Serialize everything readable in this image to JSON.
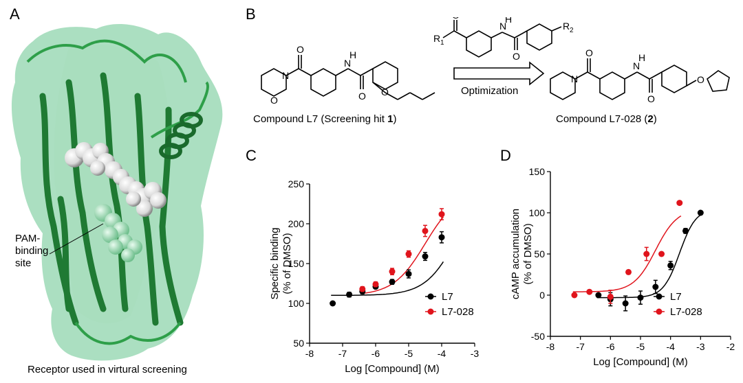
{
  "panels": {
    "a": {
      "letter": "A",
      "pam_label_lines": [
        "PAM-",
        "binding",
        "site"
      ],
      "caption": "Receptor used in virtural screening"
    },
    "b": {
      "letter": "B",
      "compound1_label_pre": "Compound L7 (Screening hit ",
      "compound1_label_bold": "1",
      "compound1_label_post": ")",
      "compound2_label_pre": "Compound L7-028 (",
      "compound2_label_bold": "2",
      "compound2_label_post": ")",
      "arrow_label": "Optimization",
      "atom_O": "O",
      "atom_N": "N",
      "atom_NH": "H",
      "scaffold_R1": "R",
      "scaffold_R1_sub": "1",
      "scaffold_R2": "R",
      "scaffold_R2_sub": "2"
    },
    "c": {
      "letter": "C"
    },
    "d": {
      "letter": "D"
    }
  },
  "colors": {
    "L7": "#000000",
    "L7-028": "#e0141c",
    "receptor": "#1f8a3c",
    "surface": "#8fd4ac"
  },
  "chart_data": [
    {
      "type": "scatter",
      "panel": "C",
      "xlabel": "Log [Compound] (M)",
      "ylabel": "Specific binding\n(% of DMSO)",
      "ylabel_lines": [
        "Specific binding",
        "(% of DMSO)"
      ],
      "xlim": [
        -8,
        -3
      ],
      "ylim": [
        50,
        250
      ],
      "xticks": [
        -8,
        -7,
        -6,
        -5,
        -4,
        -3
      ],
      "yticks": [
        50,
        100,
        150,
        200,
        250
      ],
      "legend": "bottom-right",
      "series": [
        {
          "name": "L7",
          "color": "#000000",
          "x": [
            -7.3,
            -6.8,
            -6.4,
            -6.0,
            -5.5,
            -5.0,
            -4.5,
            -4.0
          ],
          "y": [
            100,
            111,
            115,
            121,
            127,
            137,
            159,
            183
          ],
          "err": [
            0,
            3,
            3,
            2,
            3,
            5,
            5,
            7
          ],
          "fit": {
            "bottom": 110,
            "top": 260,
            "logEC50": -3.5,
            "hill": 0.9
          }
        },
        {
          "name": "L7-028",
          "color": "#e0141c",
          "x": [
            -6.4,
            -6.0,
            -5.5,
            -5.0,
            -4.5,
            -4.0
          ],
          "y": [
            118,
            124,
            140,
            162,
            191,
            212
          ],
          "err": [
            3,
            3,
            4,
            4,
            7,
            7
          ],
          "fit": {
            "bottom": 110,
            "top": 240,
            "logEC50": -4.5,
            "hill": 0.9
          }
        }
      ]
    },
    {
      "type": "scatter",
      "panel": "D",
      "xlabel": "Log [Compound] (M)",
      "ylabel": "cAMP accumulation\n(% of DMSO)",
      "ylabel_lines": [
        "cAMP accumulation",
        "(% of DMSO)"
      ],
      "xlim": [
        -8,
        -2
      ],
      "ylim": [
        -50,
        150
      ],
      "xticks": [
        -8,
        -7,
        -6,
        -5,
        -4,
        -3,
        -2
      ],
      "yticks": [
        -50,
        0,
        50,
        100,
        150
      ],
      "legend": "bottom-right",
      "series": [
        {
          "name": "L7",
          "color": "#000000",
          "x": [
            -6.4,
            -6.0,
            -5.5,
            -5.0,
            -4.5,
            -4.0,
            -3.5,
            -3.0
          ],
          "y": [
            0,
            -5,
            -10,
            -3,
            10,
            36,
            78,
            100
          ],
          "err": [
            0,
            8,
            9,
            8,
            8,
            5,
            3,
            2
          ],
          "fit": {
            "bottom": -3,
            "top": 105,
            "logEC50": -3.7,
            "hill": 1.6
          }
        },
        {
          "name": "L7-028",
          "color": "#e0141c",
          "x": [
            -7.2,
            -6.7,
            -6.0,
            -5.4,
            -4.8,
            -4.3,
            -3.7
          ],
          "y": [
            0,
            4,
            -2,
            28,
            50,
            50,
            112
          ],
          "err": [
            0,
            0,
            8,
            0,
            8,
            0,
            0
          ],
          "fit": {
            "bottom": 4,
            "top": 105,
            "logEC50": -4.5,
            "hill": 1.2
          }
        }
      ]
    }
  ]
}
